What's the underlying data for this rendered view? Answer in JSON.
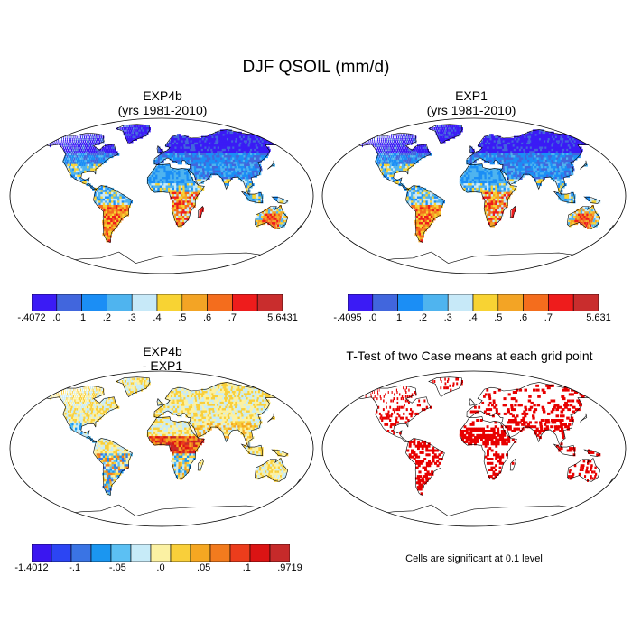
{
  "figure": {
    "title": "DJF QSOIL (mm/d)"
  },
  "panels": [
    {
      "id": "exp4b",
      "title_line1": "EXP4b",
      "title_line2": "(yrs 1981-2010)",
      "field": "absolute",
      "colorbar": {
        "colors": [
          "#3b1bf5",
          "#4166dd",
          "#1b8ef5",
          "#4fb4ef",
          "#c7e9f8",
          "#f8d333",
          "#f3a425",
          "#f46d1d",
          "#ee1c1c",
          "#c92d2d"
        ],
        "labels": [
          "-.4072",
          ".0",
          ".1",
          ".2",
          ".3",
          ".4",
          ".5",
          ".6",
          ".7",
          "5.6431"
        ]
      }
    },
    {
      "id": "exp1",
      "title_line1": "EXP1",
      "title_line2": "(yrs 1981-2010)",
      "field": "absolute",
      "colorbar": {
        "colors": [
          "#3b1bf5",
          "#4166dd",
          "#1b8ef5",
          "#4fb4ef",
          "#c7e9f8",
          "#f8d333",
          "#f3a425",
          "#f46d1d",
          "#ee1c1c",
          "#c92d2d"
        ],
        "labels": [
          "-.4095",
          ".0",
          ".1",
          ".2",
          ".3",
          ".4",
          ".5",
          ".6",
          ".7",
          "5.631"
        ]
      }
    },
    {
      "id": "diff",
      "title_line1": "EXP4b",
      "title_line2": "- EXP1",
      "field": "difference",
      "colorbar": {
        "colors": [
          "#3a16f0",
          "#2c45f3",
          "#3a74e4",
          "#1b96f0",
          "#5cc0f3",
          "#c7ebf8",
          "#fbf1a3",
          "#f9cf3a",
          "#f5a722",
          "#f27b1e",
          "#ec3d1c",
          "#db1414",
          "#c62a2a"
        ],
        "labels": [
          "-1.4012",
          "-.1",
          "-.05",
          ".0",
          ".05",
          ".1",
          ".9719"
        ]
      }
    },
    {
      "id": "ttest",
      "title_line1": "T-Test of two Case means at each grid point",
      "field": "significance",
      "note": "Cells are significant at 0.1 level"
    }
  ],
  "colors": {
    "ocean": "#ffffff",
    "coast": "#000000",
    "significant": "#e80000"
  }
}
